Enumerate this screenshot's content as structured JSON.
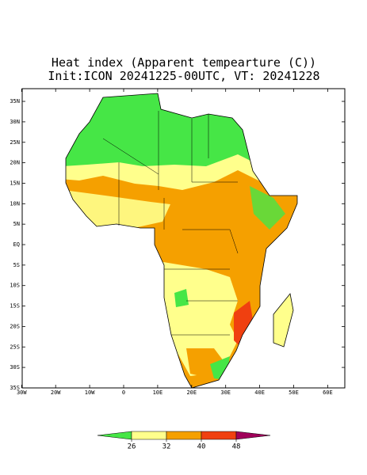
{
  "map": {
    "title": "Heat index (Apparent tempearture (C))",
    "subtitle": "Init:ICON 20241225-00UTC, VT: 20241228",
    "lat_ticks": [
      {
        "value": 35,
        "label": "35N"
      },
      {
        "value": 30,
        "label": "30N"
      },
      {
        "value": 25,
        "label": "25N"
      },
      {
        "value": 20,
        "label": "20N"
      },
      {
        "value": 15,
        "label": "15N"
      },
      {
        "value": 10,
        "label": "10N"
      },
      {
        "value": 5,
        "label": "5N"
      },
      {
        "value": 0,
        "label": "EQ"
      },
      {
        "value": -5,
        "label": "5S"
      },
      {
        "value": -10,
        "label": "10S"
      },
      {
        "value": -15,
        "label": "15S"
      },
      {
        "value": -20,
        "label": "20S"
      },
      {
        "value": -25,
        "label": "25S"
      },
      {
        "value": -30,
        "label": "30S"
      },
      {
        "value": -35,
        "label": "35S"
      }
    ],
    "lon_ticks": [
      {
        "value": -30,
        "label": "30W"
      },
      {
        "value": -20,
        "label": "20W"
      },
      {
        "value": -10,
        "label": "10W"
      },
      {
        "value": 0,
        "label": "0"
      },
      {
        "value": 10,
        "label": "10E"
      },
      {
        "value": 20,
        "label": "20E"
      },
      {
        "value": 30,
        "label": "30E"
      },
      {
        "value": 40,
        "label": "40E"
      },
      {
        "value": 50,
        "label": "50E"
      },
      {
        "value": 60,
        "label": "60E"
      }
    ],
    "colorbar": {
      "levels": [
        26,
        32,
        40,
        48
      ],
      "colors": [
        "#46e646",
        "#ffff8c",
        "#f5a000",
        "#f04010",
        "#a0005a"
      ]
    }
  }
}
